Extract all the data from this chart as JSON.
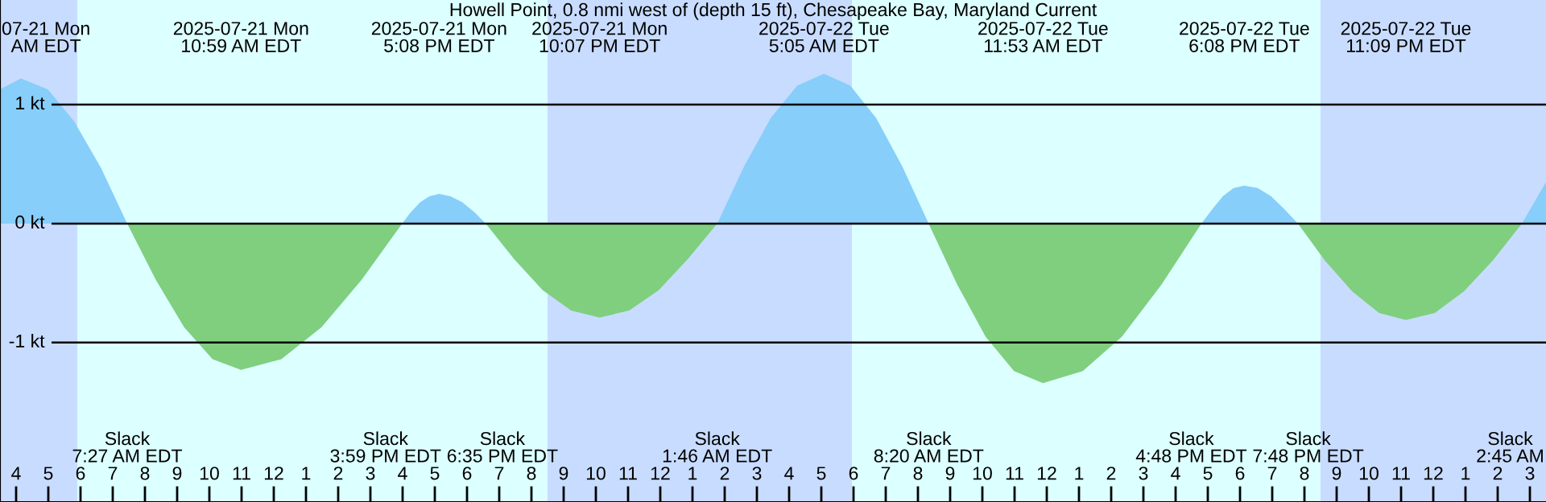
{
  "chart_data": {
    "type": "area",
    "title": "Howell Point, 0.8 nmi west of (depth 15 ft), Chesapeake Bay, Maryland Current",
    "series": [
      {
        "color": "#87cefa",
        "x": [
          "2025-07-21T03:30",
          "2025-07-21T04:09",
          "2025-07-21T04:59",
          "2025-07-21T05:48",
          "2025-07-21T06:38",
          "2025-07-21T07:27",
          "2025-07-21T15:59",
          "2025-07-21T16:16",
          "2025-07-21T16:33",
          "2025-07-21T16:50",
          "2025-07-21T17:08",
          "2025-07-21T17:29",
          "2025-07-21T17:51",
          "2025-07-21T18:13",
          "2025-07-21T18:35",
          "2025-07-22T01:46",
          "2025-07-22T02:36",
          "2025-07-22T03:26",
          "2025-07-22T04:15",
          "2025-07-22T05:05",
          "2025-07-22T05:54",
          "2025-07-22T06:42",
          "2025-07-22T07:31",
          "2025-07-22T08:20",
          "2025-07-22T16:48",
          "2025-07-22T17:08",
          "2025-07-22T17:28",
          "2025-07-22T17:48",
          "2025-07-22T18:08",
          "2025-07-22T18:33",
          "2025-07-22T18:58",
          "2025-07-22T19:23",
          "2025-07-22T19:48",
          "2025-07-23T02:45",
          "2025-07-23T03:30"
        ],
        "values": [
          1.13,
          1.22,
          1.13,
          0.86,
          0.47,
          0,
          0,
          0.1,
          0.18,
          0.23,
          0.25,
          0.23,
          0.18,
          0.1,
          0,
          0,
          0.48,
          0.89,
          1.16,
          1.26,
          1.16,
          0.89,
          0.48,
          0,
          0,
          0.12,
          0.23,
          0.3,
          0.32,
          0.3,
          0.23,
          0.12,
          0,
          0,
          0.35
        ]
      },
      {
        "color": "#7fcf7f",
        "x": [
          "2025-07-21T07:27",
          "2025-07-21T08:20",
          "2025-07-21T09:13",
          "2025-07-21T10:06",
          "2025-07-21T10:59",
          "2025-07-21T12:14",
          "2025-07-21T13:29",
          "2025-07-21T14:44",
          "2025-07-21T15:59",
          "2025-07-21T18:35",
          "2025-07-21T19:28",
          "2025-07-21T20:21",
          "2025-07-21T21:14",
          "2025-07-21T22:07",
          "2025-07-21T23:02",
          "2025-07-21T23:57",
          "2025-07-22T00:51",
          "2025-07-22T01:46",
          "2025-07-22T08:20",
          "2025-07-22T09:13",
          "2025-07-22T10:06",
          "2025-07-22T10:59",
          "2025-07-22T11:53",
          "2025-07-22T13:07",
          "2025-07-22T14:20",
          "2025-07-22T15:34",
          "2025-07-22T16:48",
          "2025-07-22T19:48",
          "2025-07-22T20:38",
          "2025-07-22T21:29",
          "2025-07-22T22:19",
          "2025-07-22T23:09",
          "2025-07-23T00:03",
          "2025-07-23T00:57",
          "2025-07-23T01:51",
          "2025-07-23T02:45"
        ],
        "values": [
          0,
          -0.47,
          -0.87,
          -1.14,
          -1.23,
          -1.14,
          -0.87,
          -0.47,
          0,
          0,
          -0.3,
          -0.56,
          -0.73,
          -0.79,
          -0.73,
          -0.56,
          -0.3,
          0,
          0,
          -0.51,
          -0.95,
          -1.24,
          -1.34,
          -1.24,
          -0.95,
          -0.51,
          0,
          0,
          -0.31,
          -0.57,
          -0.75,
          -0.81,
          -0.75,
          -0.57,
          -0.31,
          0
        ]
      }
    ],
    "xlim": [
      "2025-07-21T03:30",
      "2025-07-23T03:30"
    ],
    "ylim": [
      -2.34,
      1.88
    ],
    "yticks": [
      {
        "value": 1,
        "label": "1 kt"
      },
      {
        "value": 0,
        "label": "0 kt"
      },
      {
        "value": -1,
        "label": "-1 kt"
      }
    ],
    "xticks": [
      {
        "value": "2025-07-21T04:00",
        "label": "4"
      },
      {
        "value": "2025-07-21T05:00",
        "label": "5"
      },
      {
        "value": "2025-07-21T06:00",
        "label": "6"
      },
      {
        "value": "2025-07-21T07:00",
        "label": "7"
      },
      {
        "value": "2025-07-21T08:00",
        "label": "8"
      },
      {
        "value": "2025-07-21T09:00",
        "label": "9"
      },
      {
        "value": "2025-07-21T10:00",
        "label": "10"
      },
      {
        "value": "2025-07-21T11:00",
        "label": "11"
      },
      {
        "value": "2025-07-21T12:00",
        "label": "12"
      },
      {
        "value": "2025-07-21T13:00",
        "label": "1"
      },
      {
        "value": "2025-07-21T14:00",
        "label": "2"
      },
      {
        "value": "2025-07-21T15:00",
        "label": "3"
      },
      {
        "value": "2025-07-21T16:00",
        "label": "4"
      },
      {
        "value": "2025-07-21T17:00",
        "label": "5"
      },
      {
        "value": "2025-07-21T18:00",
        "label": "6"
      },
      {
        "value": "2025-07-21T19:00",
        "label": "7"
      },
      {
        "value": "2025-07-21T20:00",
        "label": "8"
      },
      {
        "value": "2025-07-21T21:00",
        "label": "9"
      },
      {
        "value": "2025-07-21T22:00",
        "label": "10"
      },
      {
        "value": "2025-07-21T23:00",
        "label": "11"
      },
      {
        "value": "2025-07-22T00:00",
        "label": "12"
      },
      {
        "value": "2025-07-22T01:00",
        "label": "1"
      },
      {
        "value": "2025-07-22T02:00",
        "label": "2"
      },
      {
        "value": "2025-07-22T03:00",
        "label": "3"
      },
      {
        "value": "2025-07-22T04:00",
        "label": "4"
      },
      {
        "value": "2025-07-22T05:00",
        "label": "5"
      },
      {
        "value": "2025-07-22T06:00",
        "label": "6"
      },
      {
        "value": "2025-07-22T07:00",
        "label": "7"
      },
      {
        "value": "2025-07-22T08:00",
        "label": "8"
      },
      {
        "value": "2025-07-22T09:00",
        "label": "9"
      },
      {
        "value": "2025-07-22T10:00",
        "label": "10"
      },
      {
        "value": "2025-07-22T11:00",
        "label": "11"
      },
      {
        "value": "2025-07-22T12:00",
        "label": "12"
      },
      {
        "value": "2025-07-22T13:00",
        "label": "1"
      },
      {
        "value": "2025-07-22T14:00",
        "label": "2"
      },
      {
        "value": "2025-07-22T15:00",
        "label": "3"
      },
      {
        "value": "2025-07-22T16:00",
        "label": "4"
      },
      {
        "value": "2025-07-22T17:00",
        "label": "5"
      },
      {
        "value": "2025-07-22T18:00",
        "label": "6"
      },
      {
        "value": "2025-07-22T19:00",
        "label": "7"
      },
      {
        "value": "2025-07-22T20:00",
        "label": "8"
      },
      {
        "value": "2025-07-22T21:00",
        "label": "9"
      },
      {
        "value": "2025-07-22T22:00",
        "label": "10"
      },
      {
        "value": "2025-07-22T23:00",
        "label": "11"
      },
      {
        "value": "2025-07-23T00:00",
        "label": "12"
      },
      {
        "value": "2025-07-23T01:00",
        "label": "1"
      },
      {
        "value": "2025-07-23T02:00",
        "label": "2"
      },
      {
        "value": "2025-07-23T03:00",
        "label": "3"
      }
    ],
    "grid": "y",
    "bands": [
      {
        "axis": "x",
        "from": "2025-07-21T03:30",
        "to": "2025-07-21T05:54",
        "color": "#c8dcff"
      },
      {
        "axis": "x",
        "from": "2025-07-21T20:30",
        "to": "2025-07-22T05:57",
        "color": "#c8dcff"
      },
      {
        "axis": "x",
        "from": "2025-07-22T20:30",
        "to": "2025-07-23T03:30",
        "color": "#c8dcff"
      }
    ],
    "annotations": [
      "07-21 Mon\nAM EDT",
      "2025-07-21 Mon\n10:59 AM EDT",
      "2025-07-21 Mon\n5:08 PM EDT",
      "2025-07-21 Mon\n10:07 PM EDT",
      "2025-07-22 Tue\n5:05 AM EDT",
      "2025-07-22 Tue\n11:53 AM EDT",
      "2025-07-22 Tue\n6:08 PM EDT",
      "2025-07-22 Tue\n11:09 PM EDT",
      "Slack\n7:27 AM EDT",
      "Slack\n3:59 PM EDT",
      "Slack\n6:35 PM EDT",
      "Slack\n1:46 AM EDT",
      "Slack\n8:20 AM EDT",
      "Slack\n4:48 PM EDT",
      "Slack\n7:48 PM EDT",
      "Slack\n2:45 AM"
    ]
  }
}
